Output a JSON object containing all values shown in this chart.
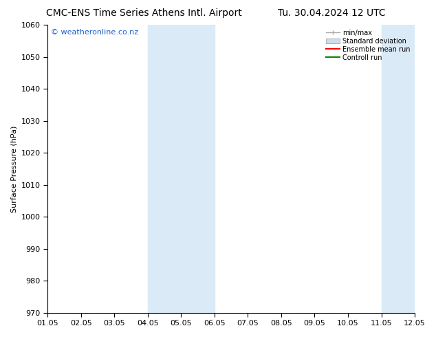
{
  "title_left": "CMC-ENS Time Series Athens Intl. Airport",
  "title_right": "Tu. 30.04.2024 12 UTC",
  "ylabel": "Surface Pressure (hPa)",
  "xlabel": "",
  "ylim": [
    970,
    1060
  ],
  "yticks": [
    970,
    980,
    990,
    1000,
    1010,
    1020,
    1030,
    1040,
    1050,
    1060
  ],
  "xtick_labels": [
    "01.05",
    "02.05",
    "03.05",
    "04.05",
    "05.05",
    "06.05",
    "07.05",
    "08.05",
    "09.05",
    "10.05",
    "11.05",
    "12.05"
  ],
  "xlim": [
    0,
    11
  ],
  "shaded_bands": [
    {
      "xmin": 3,
      "xmax": 5,
      "color": "#daeaf7"
    },
    {
      "xmin": 10,
      "xmax": 11,
      "color": "#daeaf7"
    }
  ],
  "watermark": "© weatheronline.co.nz",
  "watermark_color": "#1a5fc8",
  "background_color": "#ffffff",
  "legend_items": [
    {
      "label": "min/max",
      "color": "#aaaaaa",
      "style": "errorbar"
    },
    {
      "label": "Standard deviation",
      "color": "#ccddee",
      "style": "band"
    },
    {
      "label": "Ensemble mean run",
      "color": "#ff0000",
      "style": "line"
    },
    {
      "label": "Controll run",
      "color": "#008800",
      "style": "line"
    }
  ],
  "title_fontsize": 10,
  "axis_label_fontsize": 8,
  "tick_fontsize": 8,
  "watermark_fontsize": 8
}
